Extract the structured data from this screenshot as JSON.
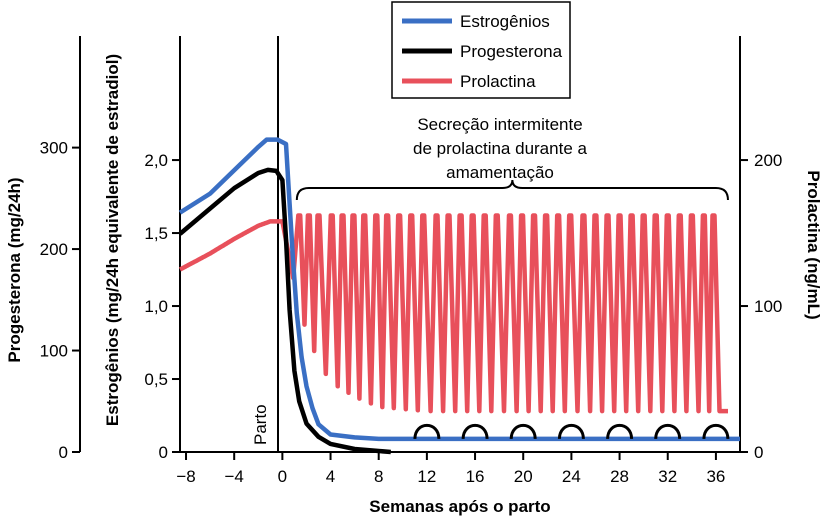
{
  "chart_data": {
    "type": "line",
    "title": "",
    "xlabel": "Semanas após o parto",
    "xlim": [
      -8.5,
      38
    ],
    "x_ticks": [
      -8,
      -4,
      0,
      4,
      8,
      12,
      16,
      20,
      24,
      28,
      32,
      36
    ],
    "x_tick_labels": [
      "−8",
      "−4",
      "0",
      "4",
      "8",
      "12",
      "16",
      "20",
      "24",
      "28",
      "32",
      "36"
    ],
    "axes": {
      "progesterone": {
        "label": "Progesterona (mg/24h)",
        "side": "left-outer",
        "range": [
          0,
          410
        ],
        "ticks": [
          0,
          100,
          200,
          300
        ],
        "tick_labels": [
          "0",
          "100",
          "200",
          "300"
        ]
      },
      "estrogen": {
        "label": "Estrogênios (mg/24h equivalente de estradiol)",
        "side": "left-inner",
        "range": [
          0,
          2.85
        ],
        "ticks": [
          0,
          0.5,
          1.0,
          1.5,
          2.0
        ],
        "tick_labels": [
          "0",
          "0,5",
          "1,0",
          "1,5",
          "2,0"
        ]
      },
      "prolactin": {
        "label": "Prolactina (ng/mL)",
        "side": "right",
        "range": [
          0,
          285
        ],
        "ticks": [
          0,
          100,
          200
        ],
        "tick_labels": [
          "0",
          "100",
          "200"
        ]
      }
    },
    "series": [
      {
        "name": "Estrogênios",
        "color": "#3a6fc4",
        "axis": "estrogen",
        "x": [
          -8.5,
          -6,
          -4,
          -2,
          -1.3,
          -0.4,
          0.3,
          0.6,
          0.9,
          1.2,
          1.6,
          2,
          2.5,
          3,
          4,
          6,
          8,
          12,
          20,
          30,
          38
        ],
        "y": [
          1.64,
          1.77,
          1.93,
          2.09,
          2.14,
          2.14,
          2.11,
          1.7,
          1.3,
          0.95,
          0.65,
          0.45,
          0.3,
          0.19,
          0.12,
          0.1,
          0.09,
          0.09,
          0.09,
          0.09,
          0.09
        ]
      },
      {
        "name": "Progesterona",
        "color": "#000000",
        "axis": "progesterone",
        "x": [
          -8.5,
          -6,
          -4,
          -2,
          -1.2,
          -0.5,
          0,
          0.3,
          0.6,
          1,
          1.4,
          2,
          3,
          4,
          6,
          8,
          9
        ],
        "y": [
          215,
          240,
          260,
          275,
          278,
          277,
          268,
          210,
          140,
          80,
          50,
          28,
          15,
          8,
          3,
          1,
          0
        ]
      },
      {
        "name": "Prolactina",
        "color": "#e8505b",
        "axis": "prolactin",
        "base_curve": {
          "x": [
            -8.5,
            -6,
            -4,
            -2,
            -1,
            0,
            1,
            2,
            3,
            4,
            6,
            8,
            12,
            20,
            30,
            37
          ],
          "y": [
            125,
            136,
            146,
            155,
            158,
            158,
            115,
            82,
            62,
            48,
            38,
            31,
            28,
            28,
            28,
            28
          ]
        },
        "peak": 162,
        "peak_weeks": [
          1.4,
          2.2,
          3.0,
          4.1,
          5.0,
          5.9,
          6.8,
          7.8,
          8.7,
          9.7,
          10.7,
          11.7,
          12.8,
          13.8,
          14.8,
          15.8,
          16.8,
          17.8,
          18.9,
          19.9,
          20.9,
          21.9,
          22.9,
          23.9,
          25.0,
          26.0,
          27.0,
          28.0,
          29.0,
          30.0,
          31.0,
          32.0,
          33.0,
          34.0,
          35.0,
          35.8
        ]
      }
    ],
    "legend": {
      "placement": "top-center",
      "items": [
        {
          "label": "Estrogênios",
          "color": "#3a6fc4"
        },
        {
          "label": "Progesterona",
          "color": "#000000"
        },
        {
          "label": "Prolactina",
          "color": "#e8505b"
        }
      ]
    },
    "annotations": {
      "birth_label": "Parto",
      "secretion_label_lines": [
        "Secreção intermitente",
        "de prolactina durante a",
        "amamentação"
      ],
      "secretion_range": [
        1.2,
        37
      ],
      "nursing_arch_weeks": [
        12,
        16,
        20,
        24,
        28,
        32,
        36
      ]
    },
    "grid": false
  }
}
